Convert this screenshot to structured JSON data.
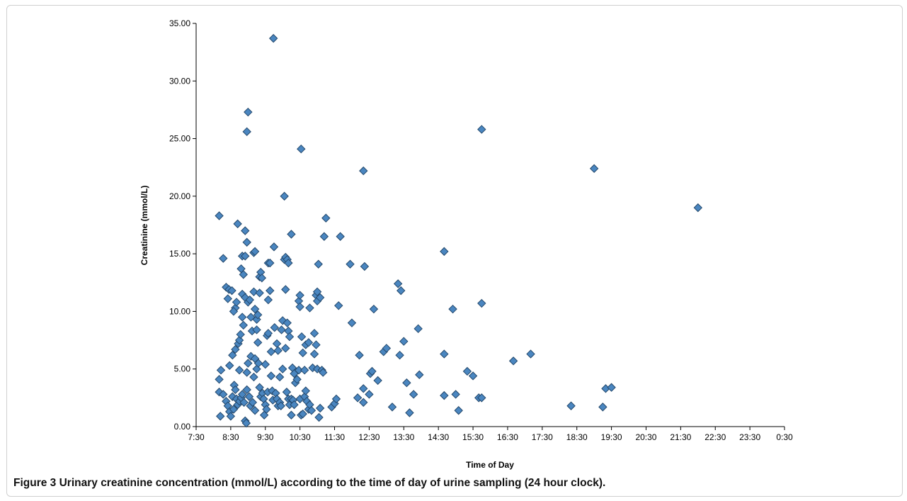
{
  "figure": {
    "label": "Figure 3",
    "caption": "Urinary creatinine concentration (mmol/L) according to the time of day of urine sampling (24 hour clock)."
  },
  "chart_data": {
    "type": "scatter",
    "xlabel": "Time of Day",
    "ylabel": "Creatinine (mmol/L)",
    "xlim": [
      "7:30",
      "0:30"
    ],
    "ylim": [
      0,
      35
    ],
    "x_ticks": [
      "7:30",
      "8:30",
      "9:30",
      "10:30",
      "11:30",
      "12:30",
      "13:30",
      "14:30",
      "15:30",
      "16:30",
      "17:30",
      "18:30",
      "19:30",
      "20:30",
      "21:30",
      "22:30",
      "23:30",
      "0:30"
    ],
    "y_ticks": [
      "0.00",
      "5.00",
      "10.00",
      "15.00",
      "20.00",
      "25.00",
      "30.00",
      "35.00"
    ],
    "grid": false,
    "marker": "diamond",
    "marker_color": "#4a86c0",
    "marker_edge_color": "#24486b",
    "x_unit": "time (HH:MM, 24 hour clock)",
    "points": [
      [
        "8:10",
        18.3
      ],
      [
        "8:17",
        14.6
      ],
      [
        "8:22",
        12.1
      ],
      [
        "8:27",
        11.9
      ],
      [
        "8:32",
        11.8
      ],
      [
        "8:25",
        11.1
      ],
      [
        "8:38",
        10.3
      ],
      [
        "8:40",
        10.8
      ],
      [
        "8:35",
        10.0
      ],
      [
        "8:42",
        17.6
      ],
      [
        "8:10",
        4.1
      ],
      [
        "8:13",
        4.9
      ],
      [
        "8:28",
        5.3
      ],
      [
        "8:33",
        6.2
      ],
      [
        "8:38",
        6.7
      ],
      [
        "8:43",
        7.2
      ],
      [
        "8:45",
        7.5
      ],
      [
        "8:47",
        8.0
      ],
      [
        "8:50",
        9.5
      ],
      [
        "8:52",
        8.8
      ],
      [
        "8:10",
        3.0
      ],
      [
        "8:17",
        2.8
      ],
      [
        "8:22",
        2.2
      ],
      [
        "8:25",
        1.8
      ],
      [
        "8:28",
        1.3
      ],
      [
        "8:30",
        0.9
      ],
      [
        "8:33",
        2.6
      ],
      [
        "8:36",
        3.6
      ],
      [
        "8:38",
        3.2
      ],
      [
        "8:40",
        2.4
      ],
      [
        "8:12",
        0.9
      ],
      [
        "8:35",
        1.5
      ],
      [
        "8:42",
        1.9
      ],
      [
        "8:45",
        2.2
      ],
      [
        "8:48",
        2.5
      ],
      [
        "8:50",
        2.8
      ],
      [
        "8:53",
        2.1
      ],
      [
        "8:55",
        0.5
      ],
      [
        "8:57",
        0.3
      ],
      [
        "8:45",
        4.9
      ],
      [
        "8:48",
        13.7
      ],
      [
        "8:50",
        14.8
      ],
      [
        "8:52",
        13.2
      ],
      [
        "8:55",
        14.8
      ],
      [
        "8:55",
        17.0
      ],
      [
        "8:58",
        16.0
      ],
      [
        "8:58",
        25.6
      ],
      [
        "9:00",
        27.3
      ],
      [
        "8:50",
        11.5
      ],
      [
        "8:55",
        11.2
      ],
      [
        "9:00",
        10.8
      ],
      [
        "9:03",
        11.0
      ],
      [
        "9:05",
        9.5
      ],
      [
        "9:00",
        5.5
      ],
      [
        "8:58",
        4.7
      ],
      [
        "8:58",
        3.2
      ],
      [
        "9:02",
        2.6
      ],
      [
        "9:04",
        1.8
      ],
      [
        "9:05",
        6.1
      ],
      [
        "9:07",
        8.3
      ],
      [
        "9:10",
        15.1
      ],
      [
        "9:12",
        15.2
      ],
      [
        "9:10",
        11.7
      ],
      [
        "9:12",
        10.2
      ],
      [
        "9:15",
        9.3
      ],
      [
        "9:17",
        9.7
      ],
      [
        "9:20",
        13.0
      ],
      [
        "9:22",
        13.4
      ],
      [
        "9:24",
        12.9
      ],
      [
        "9:20",
        11.6
      ],
      [
        "9:15",
        8.4
      ],
      [
        "9:17",
        7.3
      ],
      [
        "9:12",
        5.9
      ],
      [
        "9:10",
        4.3
      ],
      [
        "9:15",
        5.0
      ],
      [
        "9:18",
        5.5
      ],
      [
        "9:20",
        3.4
      ],
      [
        "9:22",
        2.6
      ],
      [
        "9:25",
        2.9
      ],
      [
        "9:27",
        2.4
      ],
      [
        "9:08",
        2.1
      ],
      [
        "9:12",
        1.4
      ],
      [
        "9:28",
        1.0
      ],
      [
        "9:30",
        1.9
      ],
      [
        "9:32",
        1.5
      ],
      [
        "9:34",
        3.0
      ],
      [
        "9:30",
        5.4
      ],
      [
        "9:33",
        7.9
      ],
      [
        "9:35",
        8.1
      ],
      [
        "9:35",
        11.0
      ],
      [
        "9:35",
        14.2
      ],
      [
        "9:38",
        14.2
      ],
      [
        "9:38",
        11.8
      ],
      [
        "9:40",
        6.5
      ],
      [
        "9:40",
        4.4
      ],
      [
        "9:42",
        3.1
      ],
      [
        "9:43",
        2.3
      ],
      [
        "9:45",
        15.6
      ],
      [
        "9:44",
        33.7
      ],
      [
        "9:46",
        8.6
      ],
      [
        "9:50",
        7.2
      ],
      [
        "9:52",
        6.6
      ],
      [
        "9:48",
        2.9
      ],
      [
        "9:50",
        2.4
      ],
      [
        "9:52",
        1.8
      ],
      [
        "9:55",
        2.1
      ],
      [
        "9:57",
        1.8
      ],
      [
        "9:55",
        4.3
      ],
      [
        "9:58",
        8.4
      ],
      [
        "10:00",
        5.0
      ],
      [
        "10:00",
        9.2
      ],
      [
        "10:05",
        11.9
      ],
      [
        "10:03",
        14.5
      ],
      [
        "10:05",
        14.7
      ],
      [
        "10:08",
        14.5
      ],
      [
        "10:10",
        14.2
      ],
      [
        "10:08",
        9.0
      ],
      [
        "10:10",
        8.3
      ],
      [
        "10:12",
        7.8
      ],
      [
        "10:05",
        6.8
      ],
      [
        "10:07",
        3.0
      ],
      [
        "10:10",
        2.4
      ],
      [
        "10:12",
        1.9
      ],
      [
        "10:15",
        2.4
      ],
      [
        "10:15",
        1.0
      ],
      [
        "10:18",
        2.3
      ],
      [
        "10:20",
        1.9
      ],
      [
        "10:03",
        20.0
      ],
      [
        "10:15",
        16.7
      ],
      [
        "10:17",
        5.1
      ],
      [
        "10:20",
        4.6
      ],
      [
        "10:22",
        3.8
      ],
      [
        "10:25",
        4.1
      ],
      [
        "10:28",
        4.9
      ],
      [
        "10:30",
        2.4
      ],
      [
        "10:32",
        1.0
      ],
      [
        "10:35",
        1.1
      ],
      [
        "10:38",
        2.6
      ],
      [
        "10:28",
        10.9
      ],
      [
        "10:30",
        11.4
      ],
      [
        "10:30",
        10.4
      ],
      [
        "10:32",
        24.1
      ],
      [
        "10:33",
        7.8
      ],
      [
        "10:35",
        6.4
      ],
      [
        "10:38",
        4.9
      ],
      [
        "10:40",
        3.1
      ],
      [
        "10:42",
        2.2
      ],
      [
        "10:45",
        1.5
      ],
      [
        "10:47",
        1.9
      ],
      [
        "10:50",
        1.4
      ],
      [
        "10:40",
        7.1
      ],
      [
        "10:45",
        7.3
      ],
      [
        "10:47",
        10.3
      ],
      [
        "10:52",
        5.1
      ],
      [
        "10:55",
        6.3
      ],
      [
        "10:55",
        8.1
      ],
      [
        "10:58",
        11.4
      ],
      [
        "11:00",
        11.7
      ],
      [
        "11:00",
        10.9
      ],
      [
        "10:58",
        7.1
      ],
      [
        "11:00",
        5.0
      ],
      [
        "11:02",
        14.1
      ],
      [
        "11:05",
        11.2
      ],
      [
        "11:08",
        4.9
      ],
      [
        "11:10",
        4.7
      ],
      [
        "11:12",
        16.5
      ],
      [
        "11:15",
        18.1
      ],
      [
        "11:05",
        1.6
      ],
      [
        "11:03",
        0.8
      ],
      [
        "11:25",
        1.7
      ],
      [
        "11:30",
        2.0
      ],
      [
        "11:33",
        2.4
      ],
      [
        "11:37",
        10.5
      ],
      [
        "11:40",
        16.5
      ],
      [
        "11:57",
        14.1
      ],
      [
        "12:00",
        9.0
      ],
      [
        "12:10",
        2.5
      ],
      [
        "12:13",
        6.2
      ],
      [
        "12:20",
        22.2
      ],
      [
        "12:22",
        13.9
      ],
      [
        "12:20",
        3.3
      ],
      [
        "12:20",
        2.1
      ],
      [
        "12:30",
        2.8
      ],
      [
        "12:32",
        4.6
      ],
      [
        "12:35",
        4.8
      ],
      [
        "12:38",
        10.2
      ],
      [
        "12:45",
        4.0
      ],
      [
        "12:55",
        6.5
      ],
      [
        "13:00",
        6.8
      ],
      [
        "13:10",
        1.7
      ],
      [
        "13:20",
        12.4
      ],
      [
        "13:25",
        11.8
      ],
      [
        "13:23",
        6.2
      ],
      [
        "13:30",
        7.4
      ],
      [
        "13:35",
        3.8
      ],
      [
        "13:40",
        1.2
      ],
      [
        "13:47",
        2.8
      ],
      [
        "13:55",
        8.5
      ],
      [
        "13:57",
        4.5
      ],
      [
        "14:40",
        15.2
      ],
      [
        "14:40",
        6.3
      ],
      [
        "14:40",
        2.7
      ],
      [
        "14:55",
        10.2
      ],
      [
        "15:00",
        2.8
      ],
      [
        "15:05",
        1.4
      ],
      [
        "15:20",
        4.8
      ],
      [
        "15:30",
        4.4
      ],
      [
        "15:40",
        2.5
      ],
      [
        "15:45",
        2.5
      ],
      [
        "15:45",
        25.8
      ],
      [
        "15:45",
        10.7
      ],
      [
        "16:40",
        5.7
      ],
      [
        "17:10",
        6.3
      ],
      [
        "18:20",
        1.8
      ],
      [
        "19:00",
        22.4
      ],
      [
        "19:15",
        1.7
      ],
      [
        "19:20",
        3.3
      ],
      [
        "19:30",
        3.4
      ],
      [
        "22:00",
        19.0
      ]
    ]
  }
}
